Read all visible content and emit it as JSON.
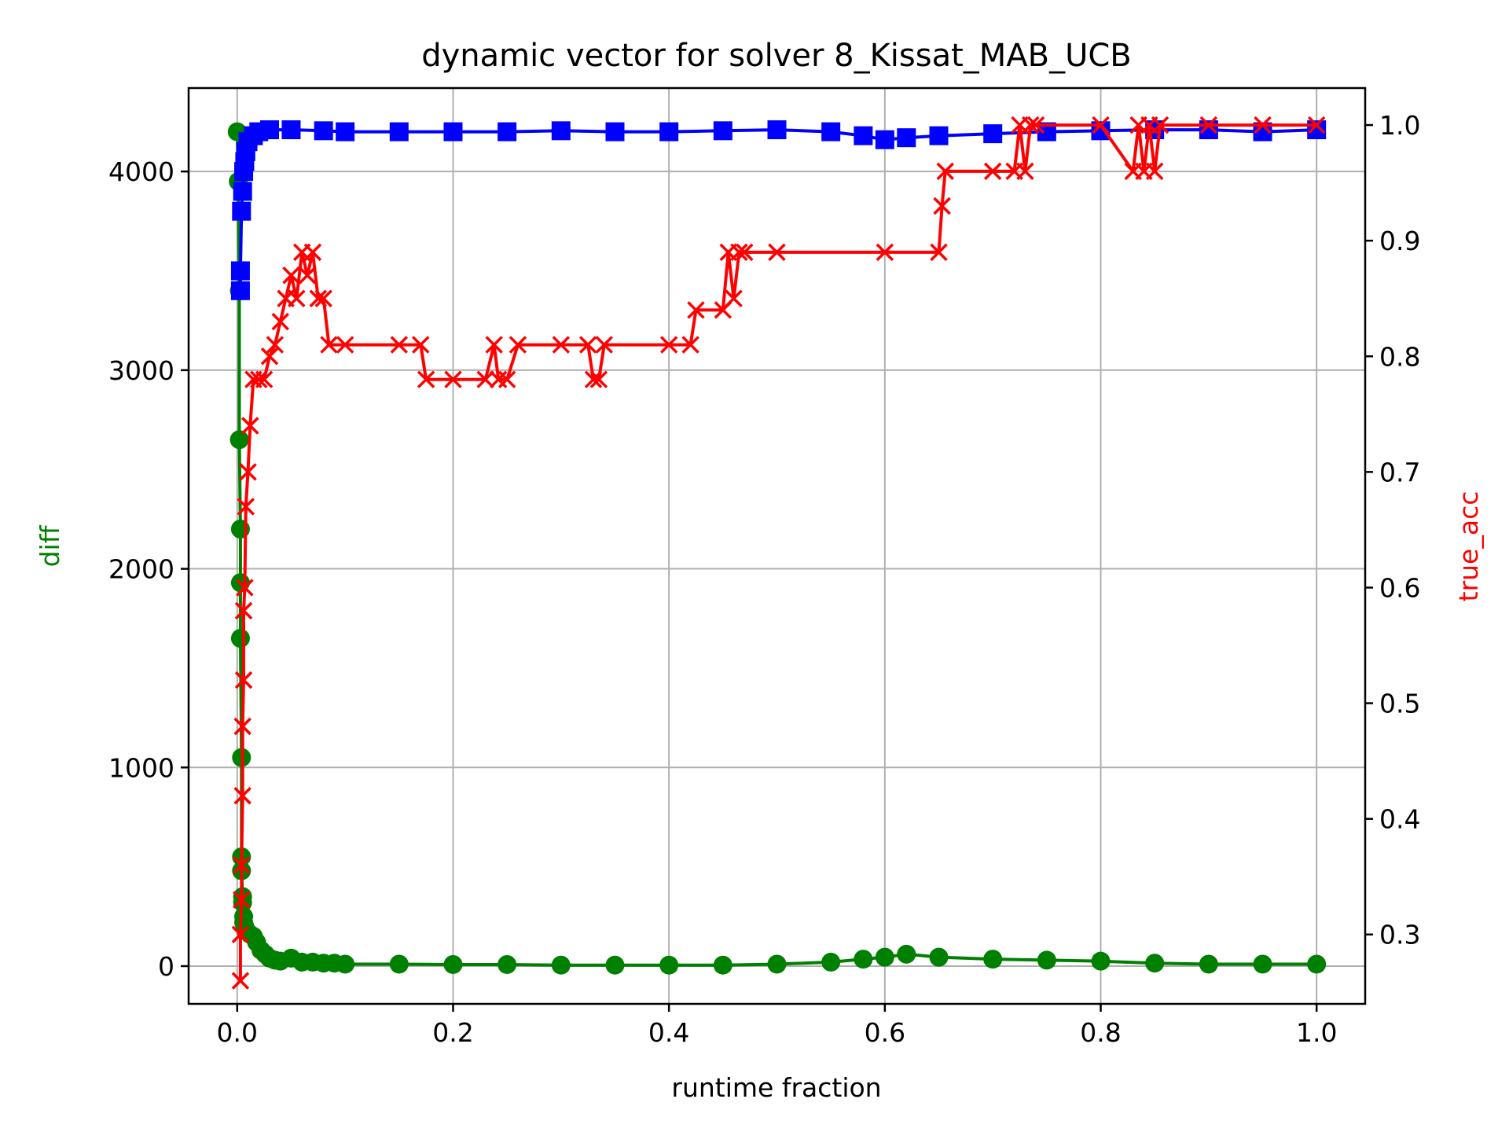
{
  "chart_data": {
    "type": "line",
    "title": "dynamic vector for solver 8_Kissat_MAB_UCB",
    "xlabel": "runtime fraction",
    "ylabel": "diff",
    "ylabel_right": "true_acc",
    "xlim": [
      -0.045,
      1.045
    ],
    "ylim": [
      -190,
      4420
    ],
    "ylim_right": [
      0.24,
      1.032
    ],
    "xticks": [
      "0.0",
      "0.2",
      "0.4",
      "0.6",
      "0.8",
      "1.0"
    ],
    "yticks": [
      "0",
      "1000",
      "2000",
      "3000",
      "4000"
    ],
    "yticks_right": [
      "0.3",
      "0.4",
      "0.5",
      "0.6",
      "0.7",
      "0.8",
      "0.9",
      "1.0"
    ],
    "grid": true,
    "colors": {
      "diff": "#008000",
      "acc": "#ff0000",
      "line_blue": "#0000ff",
      "ylabel_left": "#008000",
      "ylabel_right": "#ff0000"
    },
    "series": [
      {
        "key": "diff",
        "axis": "left",
        "marker": "circle",
        "color": "#008000",
        "x": [
          0.0,
          0.001,
          0.002,
          0.002,
          0.003,
          0.003,
          0.003,
          0.004,
          0.004,
          0.004,
          0.005,
          0.005,
          0.006,
          0.006,
          0.007,
          0.008,
          0.01,
          0.012,
          0.015,
          0.018,
          0.022,
          0.026,
          0.03,
          0.035,
          0.04,
          0.05,
          0.06,
          0.07,
          0.08,
          0.09,
          0.1,
          0.15,
          0.2,
          0.25,
          0.3,
          0.35,
          0.4,
          0.45,
          0.5,
          0.55,
          0.58,
          0.6,
          0.62,
          0.65,
          0.7,
          0.75,
          0.8,
          0.85,
          0.9,
          0.95,
          1.0
        ],
        "y": [
          4200,
          3950,
          3400,
          2650,
          2200,
          1930,
          1650,
          1050,
          550,
          480,
          350,
          320,
          250,
          220,
          200,
          180,
          170,
          160,
          150,
          120,
          80,
          60,
          40,
          30,
          25,
          40,
          20,
          20,
          15,
          15,
          10,
          10,
          8,
          8,
          5,
          5,
          5,
          5,
          10,
          20,
          35,
          45,
          60,
          45,
          35,
          30,
          25,
          15,
          10,
          10,
          10
        ]
      },
      {
        "key": "acc",
        "axis": "right",
        "marker": "x",
        "color": "#ff0000",
        "x": [
          0.003,
          0.003,
          0.004,
          0.004,
          0.005,
          0.005,
          0.006,
          0.006,
          0.007,
          0.008,
          0.01,
          0.012,
          0.015,
          0.02,
          0.025,
          0.03,
          0.035,
          0.04,
          0.045,
          0.05,
          0.055,
          0.06,
          0.065,
          0.07,
          0.075,
          0.08,
          0.085,
          0.1,
          0.15,
          0.17,
          0.175,
          0.2,
          0.23,
          0.238,
          0.242,
          0.25,
          0.26,
          0.3,
          0.325,
          0.33,
          0.335,
          0.34,
          0.4,
          0.42,
          0.425,
          0.45,
          0.455,
          0.46,
          0.465,
          0.47,
          0.5,
          0.6,
          0.65,
          0.653,
          0.656,
          0.7,
          0.72,
          0.725,
          0.73,
          0.735,
          0.74,
          0.8,
          0.83,
          0.835,
          0.84,
          0.845,
          0.85,
          0.855,
          0.9,
          0.95,
          1.0
        ],
        "y": [
          0.26,
          0.3,
          0.33,
          0.36,
          0.42,
          0.48,
          0.52,
          0.58,
          0.6,
          0.67,
          0.7,
          0.74,
          0.78,
          0.78,
          0.78,
          0.8,
          0.81,
          0.83,
          0.85,
          0.87,
          0.85,
          0.89,
          0.87,
          0.89,
          0.85,
          0.85,
          0.81,
          0.81,
          0.81,
          0.81,
          0.78,
          0.78,
          0.78,
          0.81,
          0.78,
          0.78,
          0.81,
          0.81,
          0.81,
          0.78,
          0.78,
          0.81,
          0.81,
          0.81,
          0.84,
          0.84,
          0.89,
          0.85,
          0.89,
          0.89,
          0.89,
          0.89,
          0.89,
          0.93,
          0.96,
          0.96,
          0.96,
          1.0,
          0.96,
          1.0,
          1.0,
          1.0,
          0.96,
          1.0,
          0.96,
          1.0,
          0.96,
          1.0,
          1.0,
          1.0,
          1.0
        ]
      },
      {
        "key": "blue",
        "axis": "left",
        "marker": "square",
        "color": "#0000ff",
        "x": [
          0.003,
          0.003,
          0.004,
          0.005,
          0.006,
          0.007,
          0.008,
          0.01,
          0.015,
          0.02,
          0.03,
          0.05,
          0.08,
          0.1,
          0.15,
          0.2,
          0.25,
          0.3,
          0.35,
          0.4,
          0.45,
          0.5,
          0.55,
          0.58,
          0.6,
          0.62,
          0.65,
          0.7,
          0.75,
          0.8,
          0.85,
          0.9,
          0.95,
          1.0
        ],
        "y": [
          3400,
          3500,
          3800,
          3900,
          4000,
          4050,
          4100,
          4150,
          4180,
          4200,
          4210,
          4210,
          4205,
          4200,
          4200,
          4200,
          4200,
          4205,
          4200,
          4200,
          4205,
          4210,
          4200,
          4180,
          4160,
          4170,
          4180,
          4190,
          4200,
          4205,
          4210,
          4210,
          4200,
          4210
        ]
      }
    ]
  }
}
